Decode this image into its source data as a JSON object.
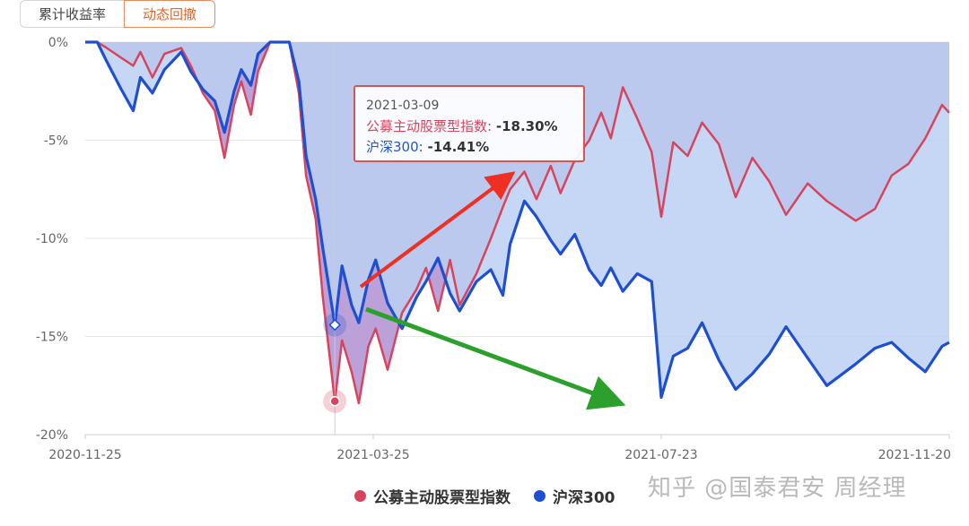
{
  "tabs": [
    {
      "label": "累计收益率",
      "active": false
    },
    {
      "label": "动态回撤",
      "active": true
    }
  ],
  "tooltip": {
    "date": "2021-03-09",
    "row_a_label": "公募主动股票型指数:",
    "row_a_value": "-18.30%",
    "row_b_label": "沪深300:",
    "row_b_value": "-14.41%"
  },
  "watermark": "知乎 @国泰君安 周经理",
  "colors": {
    "fund": "#d6455d",
    "hs300": "#1f4fd1",
    "fund_fill": "#b79cd6",
    "hs300_fill": "#bcd0f3",
    "red_arrow": "#ee2f22",
    "green_arrow": "#2ca02c"
  },
  "chart_data": {
    "type": "area",
    "title": "",
    "xlabel": "",
    "ylabel": "",
    "x_ticks": [
      "2020-11-25",
      "2021-03-25",
      "2021-07-23",
      "2021-11-20"
    ],
    "y_ticks": [
      "0%",
      "-5%",
      "-10%",
      "-15%",
      "-20%"
    ],
    "ylim": [
      -20,
      0
    ],
    "xlim": [
      "2020-11-25",
      "2021-11-20"
    ],
    "grid": true,
    "legend_position": "bottom",
    "highlight_date": "2021-03-09",
    "series": [
      {
        "name": "公募主动股票型指数",
        "points": [
          [
            "2020-11-25",
            0
          ],
          [
            "2020-11-30",
            0
          ],
          [
            "2020-12-04",
            -0.3
          ],
          [
            "2020-12-10",
            -0.8
          ],
          [
            "2020-12-15",
            -1.2
          ],
          [
            "2020-12-18",
            -0.5
          ],
          [
            "2020-12-23",
            -1.8
          ],
          [
            "2020-12-28",
            -0.6
          ],
          [
            "2021-01-04",
            -0.3
          ],
          [
            "2021-01-08",
            -1.2
          ],
          [
            "2021-01-13",
            -2.6
          ],
          [
            "2021-01-18",
            -3.5
          ],
          [
            "2021-01-22",
            -5.9
          ],
          [
            "2021-01-26",
            -3.2
          ],
          [
            "2021-01-29",
            -2.0
          ],
          [
            "2021-02-02",
            -3.7
          ],
          [
            "2021-02-05",
            -1.5
          ],
          [
            "2021-02-10",
            0
          ],
          [
            "2021-02-18",
            0
          ],
          [
            "2021-02-22",
            -2.6
          ],
          [
            "2021-02-25",
            -6.8
          ],
          [
            "2021-03-01",
            -9.0
          ],
          [
            "2021-03-04",
            -13.0
          ],
          [
            "2021-03-09",
            -18.3
          ],
          [
            "2021-03-12",
            -15.2
          ],
          [
            "2021-03-16",
            -16.8
          ],
          [
            "2021-03-19",
            -18.4
          ],
          [
            "2021-03-23",
            -15.5
          ],
          [
            "2021-03-26",
            -14.6
          ],
          [
            "2021-03-31",
            -16.7
          ],
          [
            "2021-04-06",
            -13.8
          ],
          [
            "2021-04-12",
            -12.6
          ],
          [
            "2021-04-16",
            -11.5
          ],
          [
            "2021-04-21",
            -13.7
          ],
          [
            "2021-04-26",
            -11.1
          ],
          [
            "2021-04-30",
            -13.4
          ],
          [
            "2021-05-07",
            -11.8
          ],
          [
            "2021-05-13",
            -10.0
          ],
          [
            "2021-05-18",
            -8.4
          ],
          [
            "2021-05-21",
            -7.5
          ],
          [
            "2021-05-27",
            -6.6
          ],
          [
            "2021-06-01",
            -8.0
          ],
          [
            "2021-06-07",
            -6.3
          ],
          [
            "2021-06-11",
            -7.7
          ],
          [
            "2021-06-17",
            -6.0
          ],
          [
            "2021-06-23",
            -5.0
          ],
          [
            "2021-06-28",
            -3.6
          ],
          [
            "2021-07-02",
            -4.9
          ],
          [
            "2021-07-07",
            -2.3
          ],
          [
            "2021-07-13",
            -3.9
          ],
          [
            "2021-07-19",
            -5.6
          ],
          [
            "2021-07-23",
            -8.9
          ],
          [
            "2021-07-28",
            -5.1
          ],
          [
            "2021-08-03",
            -5.8
          ],
          [
            "2021-08-09",
            -4.1
          ],
          [
            "2021-08-16",
            -5.2
          ],
          [
            "2021-08-23",
            -7.9
          ],
          [
            "2021-08-30",
            -5.9
          ],
          [
            "2021-09-06",
            -7.1
          ],
          [
            "2021-09-13",
            -8.8
          ],
          [
            "2021-09-22",
            -7.2
          ],
          [
            "2021-09-30",
            -8.1
          ],
          [
            "2021-10-12",
            -9.1
          ],
          [
            "2021-10-20",
            -8.5
          ],
          [
            "2021-10-27",
            -6.8
          ],
          [
            "2021-11-03",
            -6.2
          ],
          [
            "2021-11-10",
            -4.9
          ],
          [
            "2021-11-17",
            -3.2
          ],
          [
            "2021-11-20",
            -3.6
          ]
        ]
      },
      {
        "name": "沪深300",
        "points": [
          [
            "2020-11-25",
            0
          ],
          [
            "2020-11-30",
            0
          ],
          [
            "2020-12-04",
            -1.0
          ],
          [
            "2020-12-10",
            -2.4
          ],
          [
            "2020-12-15",
            -3.5
          ],
          [
            "2020-12-18",
            -1.8
          ],
          [
            "2020-12-23",
            -2.6
          ],
          [
            "2020-12-28",
            -1.4
          ],
          [
            "2021-01-04",
            -0.5
          ],
          [
            "2021-01-08",
            -1.5
          ],
          [
            "2021-01-13",
            -2.4
          ],
          [
            "2021-01-18",
            -3.0
          ],
          [
            "2021-01-22",
            -4.6
          ],
          [
            "2021-01-26",
            -2.5
          ],
          [
            "2021-01-29",
            -1.4
          ],
          [
            "2021-02-02",
            -2.2
          ],
          [
            "2021-02-05",
            -0.6
          ],
          [
            "2021-02-10",
            0
          ],
          [
            "2021-02-18",
            0
          ],
          [
            "2021-02-22",
            -2.0
          ],
          [
            "2021-02-25",
            -5.8
          ],
          [
            "2021-03-01",
            -8.0
          ],
          [
            "2021-03-04",
            -10.5
          ],
          [
            "2021-03-09",
            -14.41
          ],
          [
            "2021-03-12",
            -11.4
          ],
          [
            "2021-03-16",
            -13.4
          ],
          [
            "2021-03-19",
            -14.3
          ],
          [
            "2021-03-23",
            -12.1
          ],
          [
            "2021-03-26",
            -11.1
          ],
          [
            "2021-03-31",
            -13.3
          ],
          [
            "2021-04-06",
            -14.6
          ],
          [
            "2021-04-12",
            -13.0
          ],
          [
            "2021-04-16",
            -12.2
          ],
          [
            "2021-04-21",
            -11.0
          ],
          [
            "2021-04-26",
            -12.8
          ],
          [
            "2021-04-30",
            -13.7
          ],
          [
            "2021-05-07",
            -12.2
          ],
          [
            "2021-05-13",
            -11.6
          ],
          [
            "2021-05-18",
            -12.9
          ],
          [
            "2021-05-21",
            -10.3
          ],
          [
            "2021-05-27",
            -8.1
          ],
          [
            "2021-06-01",
            -8.9
          ],
          [
            "2021-06-07",
            -10.1
          ],
          [
            "2021-06-11",
            -10.8
          ],
          [
            "2021-06-17",
            -9.8
          ],
          [
            "2021-06-23",
            -11.6
          ],
          [
            "2021-06-28",
            -12.4
          ],
          [
            "2021-07-02",
            -11.5
          ],
          [
            "2021-07-07",
            -12.7
          ],
          [
            "2021-07-13",
            -11.8
          ],
          [
            "2021-07-19",
            -12.2
          ],
          [
            "2021-07-23",
            -18.1
          ],
          [
            "2021-07-28",
            -16.0
          ],
          [
            "2021-08-03",
            -15.6
          ],
          [
            "2021-08-09",
            -14.3
          ],
          [
            "2021-08-16",
            -16.2
          ],
          [
            "2021-08-23",
            -17.7
          ],
          [
            "2021-08-30",
            -16.9
          ],
          [
            "2021-09-06",
            -15.9
          ],
          [
            "2021-09-13",
            -14.5
          ],
          [
            "2021-09-22",
            -16.1
          ],
          [
            "2021-09-30",
            -17.5
          ],
          [
            "2021-10-12",
            -16.4
          ],
          [
            "2021-10-20",
            -15.6
          ],
          [
            "2021-10-27",
            -15.3
          ],
          [
            "2021-11-03",
            -16.1
          ],
          [
            "2021-11-10",
            -16.8
          ],
          [
            "2021-11-17",
            -15.5
          ],
          [
            "2021-11-20",
            -15.3
          ]
        ]
      }
    ]
  }
}
